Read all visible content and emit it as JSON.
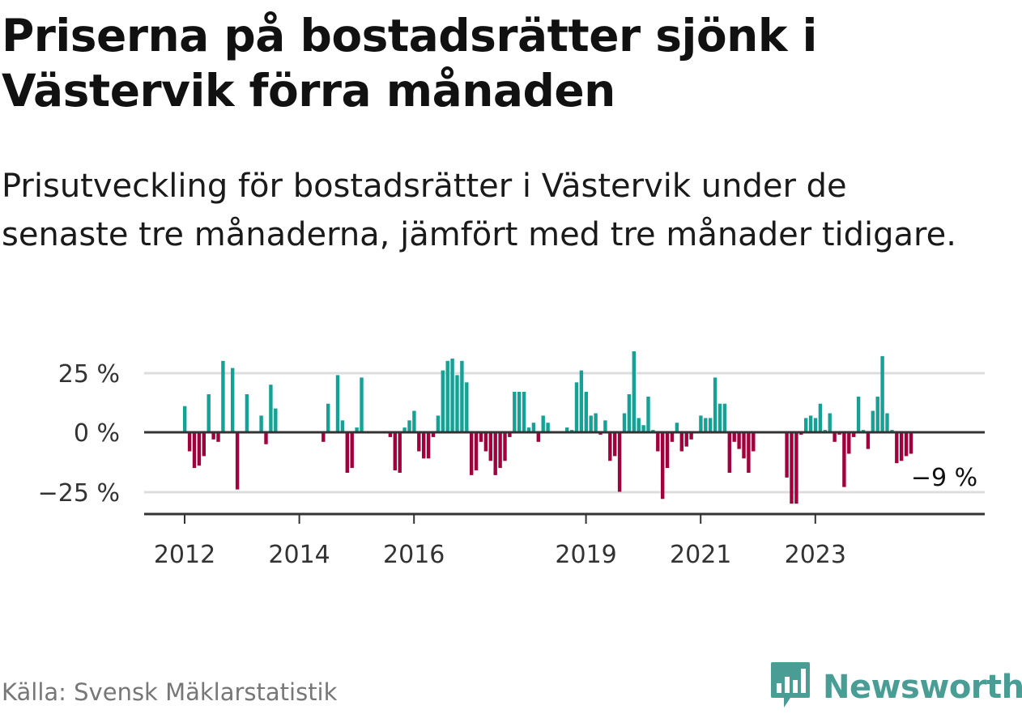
{
  "title": "Priserna på bostadsrätter sjönk i Västervik förra månaden",
  "subtitle": "Prisutveckling för bostadsrätter i Västervik under de senaste tre månaderna, jämfört med tre månader tidigare.",
  "source": "Källa: Svensk Mäklarstatistik",
  "brand": {
    "name": "Newsworthy",
    "logo_icon": "newsworthy-logo-icon"
  },
  "colors": {
    "positive": "#16a196",
    "negative": "#a0003c",
    "grid": "#dddddd",
    "axis": "#333333"
  },
  "chart_data": {
    "type": "bar",
    "title": "Priserna på bostadsrätter sjönk i Västervik förra månaden",
    "xlabel": "",
    "ylabel": "",
    "ylim": [
      -35,
      36
    ],
    "y_ticks": [
      25,
      0,
      -25
    ],
    "y_tick_labels": [
      "25 %",
      "0 %",
      "−25 %"
    ],
    "x_ticks": [
      2012,
      2014,
      2016,
      2019,
      2021,
      2023
    ],
    "x_tick_labels": [
      "2012",
      "2014",
      "2016",
      "2019",
      "2021",
      "2023"
    ],
    "annotation": {
      "text": "−9 %",
      "value": -9,
      "placement": "below last bar"
    },
    "start": "2012-01",
    "end": "2023-12",
    "series": [
      {
        "name": "Prisutveckling",
        "values": [
          11,
          -8,
          -15,
          -14,
          -10,
          16,
          -3,
          -4,
          30,
          null,
          27,
          -24,
          null,
          16,
          null,
          null,
          7,
          -5,
          20,
          10,
          null,
          null,
          null,
          null,
          null,
          null,
          null,
          null,
          null,
          -4,
          12,
          null,
          24,
          5,
          -17,
          -15,
          2,
          23,
          null,
          null,
          null,
          null,
          null,
          -2,
          -16,
          -17,
          2,
          5,
          9,
          -8,
          -11,
          -11,
          -2,
          7,
          26,
          30,
          31,
          24,
          30,
          21,
          -18,
          -16,
          -4,
          -8,
          -12,
          -18,
          -15,
          -12,
          -2,
          17,
          17,
          17,
          2,
          4,
          -4,
          7,
          4,
          null,
          null,
          null,
          2,
          1,
          21,
          26,
          17,
          7,
          8,
          -1,
          5,
          -12,
          -10,
          -25,
          8,
          16,
          34,
          6,
          3,
          15,
          1,
          -8,
          -28,
          -15,
          -4,
          4,
          -8,
          -6,
          -3,
          null,
          7,
          6,
          6,
          23,
          12,
          12,
          -17,
          -4,
          -7,
          -11,
          -17,
          -8,
          null,
          null,
          null,
          null,
          null,
          null,
          -19,
          -30,
          -30,
          -1,
          6,
          7,
          6,
          12,
          1,
          8,
          -4,
          -1,
          -23,
          -9,
          -2,
          15,
          1,
          -7,
          9,
          15,
          32,
          8,
          1,
          -13,
          -12,
          -10,
          -9
        ]
      }
    ]
  }
}
